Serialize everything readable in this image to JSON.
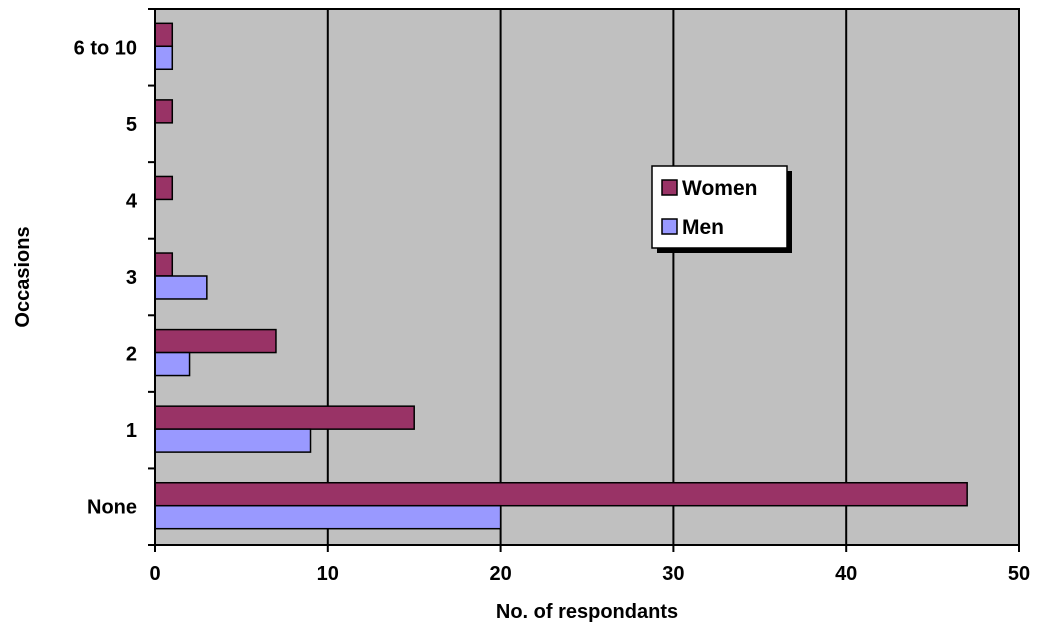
{
  "chart_data": {
    "type": "bar",
    "orientation": "horizontal",
    "title": "",
    "xlabel": "No. of respondants",
    "ylabel": "Occasions",
    "categories": [
      "None",
      "1",
      "2",
      "3",
      "4",
      "5",
      "6 to 10"
    ],
    "xlim": [
      0,
      50
    ],
    "xticks": [
      "0",
      "10",
      "20",
      "30",
      "40",
      "50"
    ],
    "grid": "vertical",
    "legend_position": "right",
    "plot_background": "#c0c0c0",
    "series": [
      {
        "name": "Women",
        "color": "#993366",
        "values": [
          47,
          15,
          7,
          1,
          1,
          1,
          1
        ]
      },
      {
        "name": "Men",
        "color": "#9999ff",
        "values": [
          20,
          9,
          2,
          3,
          0,
          0,
          1
        ]
      }
    ]
  }
}
